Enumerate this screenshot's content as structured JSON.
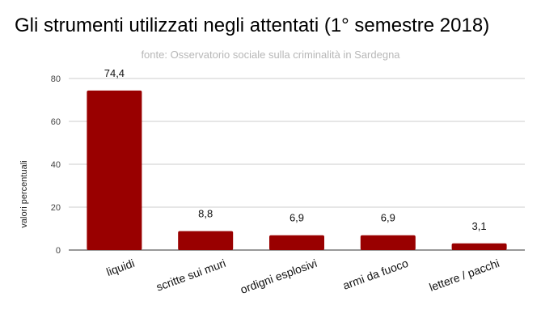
{
  "chart_data": {
    "type": "bar",
    "title": "Gli strumenti utilizzati negli attentati (1° semestre 2018)",
    "subtitle": "fonte: Osservatorio sociale sulla criminalità in Sardegna",
    "xlabel": "",
    "ylabel": "valori percentuali",
    "categories": [
      "liquidi",
      "scritte sui muri",
      "ordigni esplosivi",
      "armi da fuoco",
      "lettere / pacchi"
    ],
    "values": [
      74.4,
      8.8,
      6.9,
      6.9,
      3.1
    ],
    "value_labels": [
      "74,4",
      "8,8",
      "6,9",
      "6,9",
      "3,1"
    ],
    "ylim": [
      0,
      80
    ],
    "yticks": [
      0,
      20,
      40,
      60,
      80
    ],
    "grid": true,
    "legend": "none",
    "bar_color": "#990000",
    "grid_color": "#cccccc"
  }
}
